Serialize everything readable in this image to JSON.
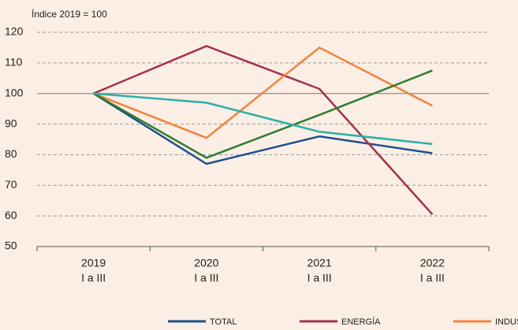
{
  "chart_data": {
    "type": "line",
    "y_label": "Índice 2019 = 100",
    "categories": [
      "2019",
      "2020",
      "2021",
      "2022"
    ],
    "category_sublabels": [
      "I a III",
      "I a III",
      "I a III",
      "I a III"
    ],
    "series": [
      {
        "name": "TOTAL",
        "color": "#1f4e8c",
        "values": [
          100,
          77,
          86,
          80.5
        ]
      },
      {
        "name": "ENERGÍA",
        "color": "#a33148",
        "values": [
          100,
          115.5,
          101.5,
          60.5
        ]
      },
      {
        "name": "INDUSTRIA, EXCLUYENDO REFINO",
        "color": "#f0843c",
        "values": [
          100,
          85.5,
          115,
          96
        ]
      },
      {
        "color": "#2e7d32",
        "values": [
          100,
          79,
          93,
          107.5
        ]
      },
      {
        "color": "#2bb0a8",
        "values": [
          100,
          97,
          87.5,
          83.5
        ]
      }
    ],
    "ylim": [
      50,
      120
    ],
    "yticks": [
      50,
      60,
      70,
      80,
      90,
      100,
      110,
      120
    ],
    "grid": true
  }
}
